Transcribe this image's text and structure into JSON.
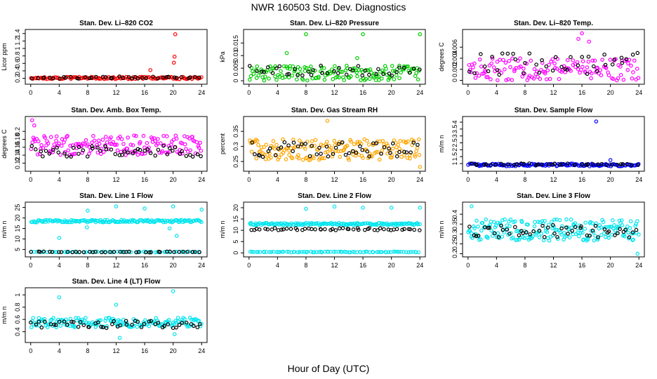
{
  "figure": {
    "title": "NWR  160503  Std. Dev. Diagnostics",
    "xlabel": "Hour of Day (UTC)"
  },
  "chart_data": [
    {
      "id": "co2",
      "type": "scatter",
      "title": "Stan. Dev. Li–820 CO2",
      "ylabel": "Licor ppm",
      "xlim": [
        0,
        24
      ],
      "ylim": [
        0.1,
        1.45
      ],
      "xticks": [
        0,
        4,
        8,
        12,
        16,
        20,
        24
      ],
      "yticks": [
        0.2,
        0.4,
        0.6,
        0.8,
        1.0,
        1.2,
        1.4
      ],
      "color": "#ff0000",
      "band": {
        "base": 0.21,
        "spread": 0.03,
        "count": 130
      },
      "black": {
        "base": 0.22,
        "spread": 0.03,
        "count": 40
      },
      "outliers": [
        {
          "x": 16.8,
          "y": 0.42
        },
        {
          "x": 20.1,
          "y": 0.62
        },
        {
          "x": 20.2,
          "y": 0.78
        },
        {
          "x": 20.3,
          "y": 1.38
        }
      ]
    },
    {
      "id": "pressure",
      "type": "scatter",
      "title": "Stan. Dev. Li–820 Pressure",
      "ylabel": "kPa",
      "xlim": [
        0,
        24
      ],
      "ylim": [
        -0.0005,
        0.0195
      ],
      "xticks": [
        0,
        4,
        8,
        12,
        16,
        20,
        24
      ],
      "yticks": [
        0.0,
        0.005,
        0.01,
        0.015
      ],
      "color": "#00cc00",
      "band": {
        "base": 0.003,
        "spread": 0.003,
        "count": 150
      },
      "black": {
        "base": 0.004,
        "spread": 0.002,
        "count": 40
      },
      "outliers": [
        {
          "x": 8.0,
          "y": 0.0185
        },
        {
          "x": 16.0,
          "y": 0.0185
        },
        {
          "x": 24.0,
          "y": 0.0185
        },
        {
          "x": 5.3,
          "y": 0.011
        },
        {
          "x": 15.2,
          "y": 0.009
        }
      ]
    },
    {
      "id": "temp",
      "type": "scatter",
      "title": "Stan. Dev. Li–820 Temp.",
      "ylabel": "degrees C",
      "xlim": [
        0,
        24
      ],
      "ylim": [
        -0.0003,
        0.0088
      ],
      "xticks": [
        0,
        4,
        8,
        12,
        16,
        20,
        24
      ],
      "yticks": [
        0.0,
        0.002,
        0.004,
        0.006
      ],
      "color": "#ff00ff",
      "band": {
        "base": 0.002,
        "spread": 0.002,
        "count": 140
      },
      "black": {
        "base": 0.003,
        "spread": 0.002,
        "count": 40
      },
      "outliers": [
        {
          "x": 16.0,
          "y": 0.0085
        },
        {
          "x": 15.5,
          "y": 0.0075
        },
        {
          "x": 17.0,
          "y": 0.007
        }
      ]
    },
    {
      "id": "ambbox",
      "type": "scatter",
      "title": "Stan. Dev. Amb. Box Temp.",
      "ylabel": "degrees C",
      "xlim": [
        0,
        24
      ],
      "ylim": [
        0.105,
        0.232
      ],
      "xticks": [
        0,
        4,
        8,
        12,
        16,
        20,
        24
      ],
      "yticks": [
        0.12,
        0.14,
        0.16,
        0.18,
        0.2
      ],
      "color": "#ff00ff",
      "band": {
        "base": 0.165,
        "spread": 0.025,
        "count": 160
      },
      "black": {
        "base": 0.15,
        "spread": 0.015,
        "count": 50
      },
      "outliers": [
        {
          "x": 0.2,
          "y": 0.228
        },
        {
          "x": 0.5,
          "y": 0.215
        }
      ]
    },
    {
      "id": "rh",
      "type": "scatter",
      "title": "Stan. Dev. Gas Stream RH",
      "ylabel": "percent",
      "xlim": [
        0,
        24
      ],
      "ylim": [
        0.225,
        0.392
      ],
      "xticks": [
        0,
        4,
        8,
        12,
        16,
        20,
        24
      ],
      "yticks": [
        0.25,
        0.3,
        0.35
      ],
      "color": "#ffa500",
      "band": {
        "base": 0.29,
        "spread": 0.035,
        "count": 170
      },
      "black": {
        "base": 0.29,
        "spread": 0.025,
        "count": 50
      },
      "outliers": [
        {
          "x": 24.0,
          "y": 0.232
        },
        {
          "x": 11.0,
          "y": 0.385
        }
      ]
    },
    {
      "id": "sampleflow",
      "type": "scatter",
      "title": "Stan. Dev. Sample Flow",
      "ylabel": "m/m n",
      "xlim": [
        0,
        24
      ],
      "ylim": [
        0.6,
        4.25
      ],
      "xticks": [
        0,
        4,
        8,
        12,
        16,
        20,
        24
      ],
      "yticks": [
        1.0,
        1.5,
        2.0,
        2.5,
        3.0,
        3.5,
        4.0
      ],
      "color": "#0000ff",
      "band": {
        "base": 0.9,
        "spread": 0.1,
        "count": 150
      },
      "black": {
        "base": 0.95,
        "spread": 0.06,
        "count": 40
      },
      "outliers": [
        {
          "x": 18.0,
          "y": 4.05
        },
        {
          "x": 20.0,
          "y": 1.25
        }
      ]
    },
    {
      "id": "line1",
      "type": "scatter",
      "title": "Stan. Dev. Line 1 Flow",
      "ylabel": "m/m n",
      "xlim": [
        0,
        24
      ],
      "ylim": [
        2.5,
        26.5
      ],
      "xticks": [
        0,
        4,
        8,
        12,
        16,
        20,
        24
      ],
      "yticks": [
        5,
        10,
        15,
        20,
        25
      ],
      "color": "#00e5ee",
      "band": {
        "base": 18.5,
        "spread": 0.6,
        "count": 150
      },
      "band2": {
        "base": 3.8,
        "spread": 0.2,
        "count": 60
      },
      "black": {
        "base": 3.8,
        "spread": 0.2,
        "count": 40
      },
      "outliers": [
        {
          "x": 8.0,
          "y": 23.5
        },
        {
          "x": 12.0,
          "y": 25.5
        },
        {
          "x": 16.0,
          "y": 24.5
        },
        {
          "x": 20.0,
          "y": 25.5
        },
        {
          "x": 24.0,
          "y": 24.0
        },
        {
          "x": 4.0,
          "y": 10.5
        },
        {
          "x": 20.5,
          "y": 11.5
        },
        {
          "x": 7.9,
          "y": 15.5
        },
        {
          "x": 19.5,
          "y": 15.0
        }
      ]
    },
    {
      "id": "line2",
      "type": "scatter",
      "title": "Stan. Dev. Line 2 Flow",
      "ylabel": "m/m n",
      "xlim": [
        0,
        24
      ],
      "ylim": [
        -0.8,
        21.5
      ],
      "xticks": [
        0,
        4,
        8,
        12,
        16,
        20,
        24
      ],
      "yticks": [
        0,
        5,
        10,
        15,
        20
      ],
      "color": "#00e5ee",
      "band": {
        "base": 12.8,
        "spread": 0.5,
        "count": 150
      },
      "band2": {
        "base": 0.4,
        "spread": 0.15,
        "count": 80
      },
      "black": {
        "base": 10.5,
        "spread": 0.5,
        "count": 50
      },
      "outliers": [
        {
          "x": 8.0,
          "y": 19.5
        },
        {
          "x": 12.0,
          "y": 20.5
        },
        {
          "x": 16.0,
          "y": 20.0
        },
        {
          "x": 20.0,
          "y": 20.0
        },
        {
          "x": 24.0,
          "y": 20.0
        }
      ]
    },
    {
      "id": "line3",
      "type": "scatter",
      "title": "Stan. Dev. Line 3 Flow",
      "ylabel": "m/m n",
      "xlim": [
        0,
        24
      ],
      "ylim": [
        0.195,
        0.45
      ],
      "xticks": [
        0,
        4,
        8,
        12,
        16,
        20,
        24
      ],
      "yticks": [
        0.2,
        0.25,
        0.3,
        0.35,
        0.4
      ],
      "color": "#00e5ee",
      "band": {
        "base": 0.32,
        "spread": 0.055,
        "count": 200
      },
      "black": {
        "base": 0.31,
        "spread": 0.035,
        "count": 50
      },
      "outliers": [
        {
          "x": 0.5,
          "y": 0.44
        },
        {
          "x": 23.8,
          "y": 0.2
        }
      ]
    },
    {
      "id": "line4",
      "type": "scatter",
      "title": "Stan. Dev. Line 4 (LT) Flow",
      "ylabel": "m/m n",
      "xlim": [
        0,
        24
      ],
      "ylim": [
        0.26,
        1.08
      ],
      "xticks": [
        0,
        4,
        8,
        12,
        16,
        20,
        24
      ],
      "yticks": [
        0.4,
        0.6,
        0.8,
        1.0
      ],
      "color": "#00e5ee",
      "band": {
        "base": 0.55,
        "spread": 0.08,
        "count": 160
      },
      "black": {
        "base": 0.52,
        "spread": 0.06,
        "count": 50
      },
      "outliers": [
        {
          "x": 20.0,
          "y": 1.06
        },
        {
          "x": 4.0,
          "y": 0.96
        },
        {
          "x": 12.0,
          "y": 0.84
        },
        {
          "x": 12.5,
          "y": 0.3
        },
        {
          "x": 20.2,
          "y": 0.36
        }
      ]
    }
  ]
}
